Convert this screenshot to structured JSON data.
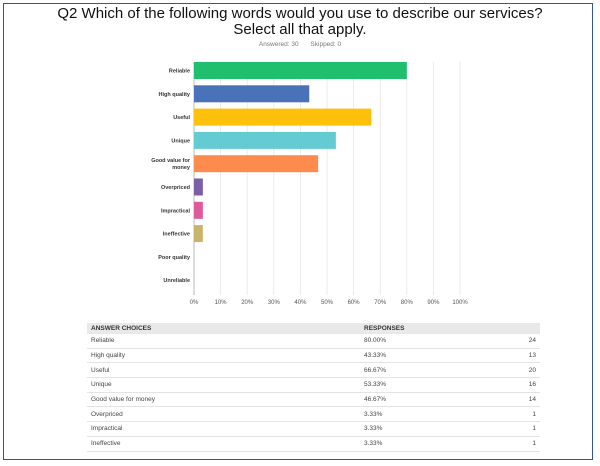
{
  "question": {
    "title_line1": "Q2 Which of the following words would you use to describe our services?",
    "title_line2": "Select all that apply.",
    "answered_label": "Answered: 30",
    "skipped_label": "Skipped: 0"
  },
  "chart_data": {
    "type": "bar",
    "orientation": "horizontal",
    "categories": [
      "Reliable",
      "High quality",
      "Useful",
      "Unique",
      "Good value for money",
      "Overpriced",
      "Impractical",
      "Ineffective",
      "Poor quality",
      "Unreliable"
    ],
    "category_lines": [
      [
        "Reliable"
      ],
      [
        "High quality"
      ],
      [
        "Useful"
      ],
      [
        "Unique"
      ],
      [
        "Good value for",
        "money"
      ],
      [
        "Overpriced"
      ],
      [
        "Impractical"
      ],
      [
        "Ineffective"
      ],
      [
        "Poor quality"
      ],
      [
        "Unreliable"
      ]
    ],
    "values": [
      80.0,
      43.33,
      66.67,
      53.33,
      46.67,
      3.33,
      3.33,
      3.33,
      0,
      0
    ],
    "colors": [
      "#1fbf6e",
      "#4a72b8",
      "#fec10b",
      "#63cbd1",
      "#fd8b4e",
      "#7b5ea7",
      "#e05a9b",
      "#c9b46d",
      "#999999",
      "#999999"
    ],
    "xticks": [
      "0%",
      "10%",
      "20%",
      "30%",
      "40%",
      "50%",
      "60%",
      "70%",
      "80%",
      "90%",
      "100%"
    ],
    "xlim": [
      0,
      100
    ],
    "grid": true
  },
  "table": {
    "headers": [
      "ANSWER CHOICES",
      "RESPONSES",
      ""
    ],
    "rows": [
      [
        "Reliable",
        "80.00%",
        "24"
      ],
      [
        "High quality",
        "43.33%",
        "13"
      ],
      [
        "Useful",
        "66.67%",
        "20"
      ],
      [
        "Unique",
        "53.33%",
        "16"
      ],
      [
        "Good value for money",
        "46.67%",
        "14"
      ],
      [
        "Overpriced",
        "3.33%",
        "1"
      ],
      [
        "Impractical",
        "3.33%",
        "1"
      ],
      [
        "Ineffective",
        "3.33%",
        "1"
      ]
    ]
  }
}
